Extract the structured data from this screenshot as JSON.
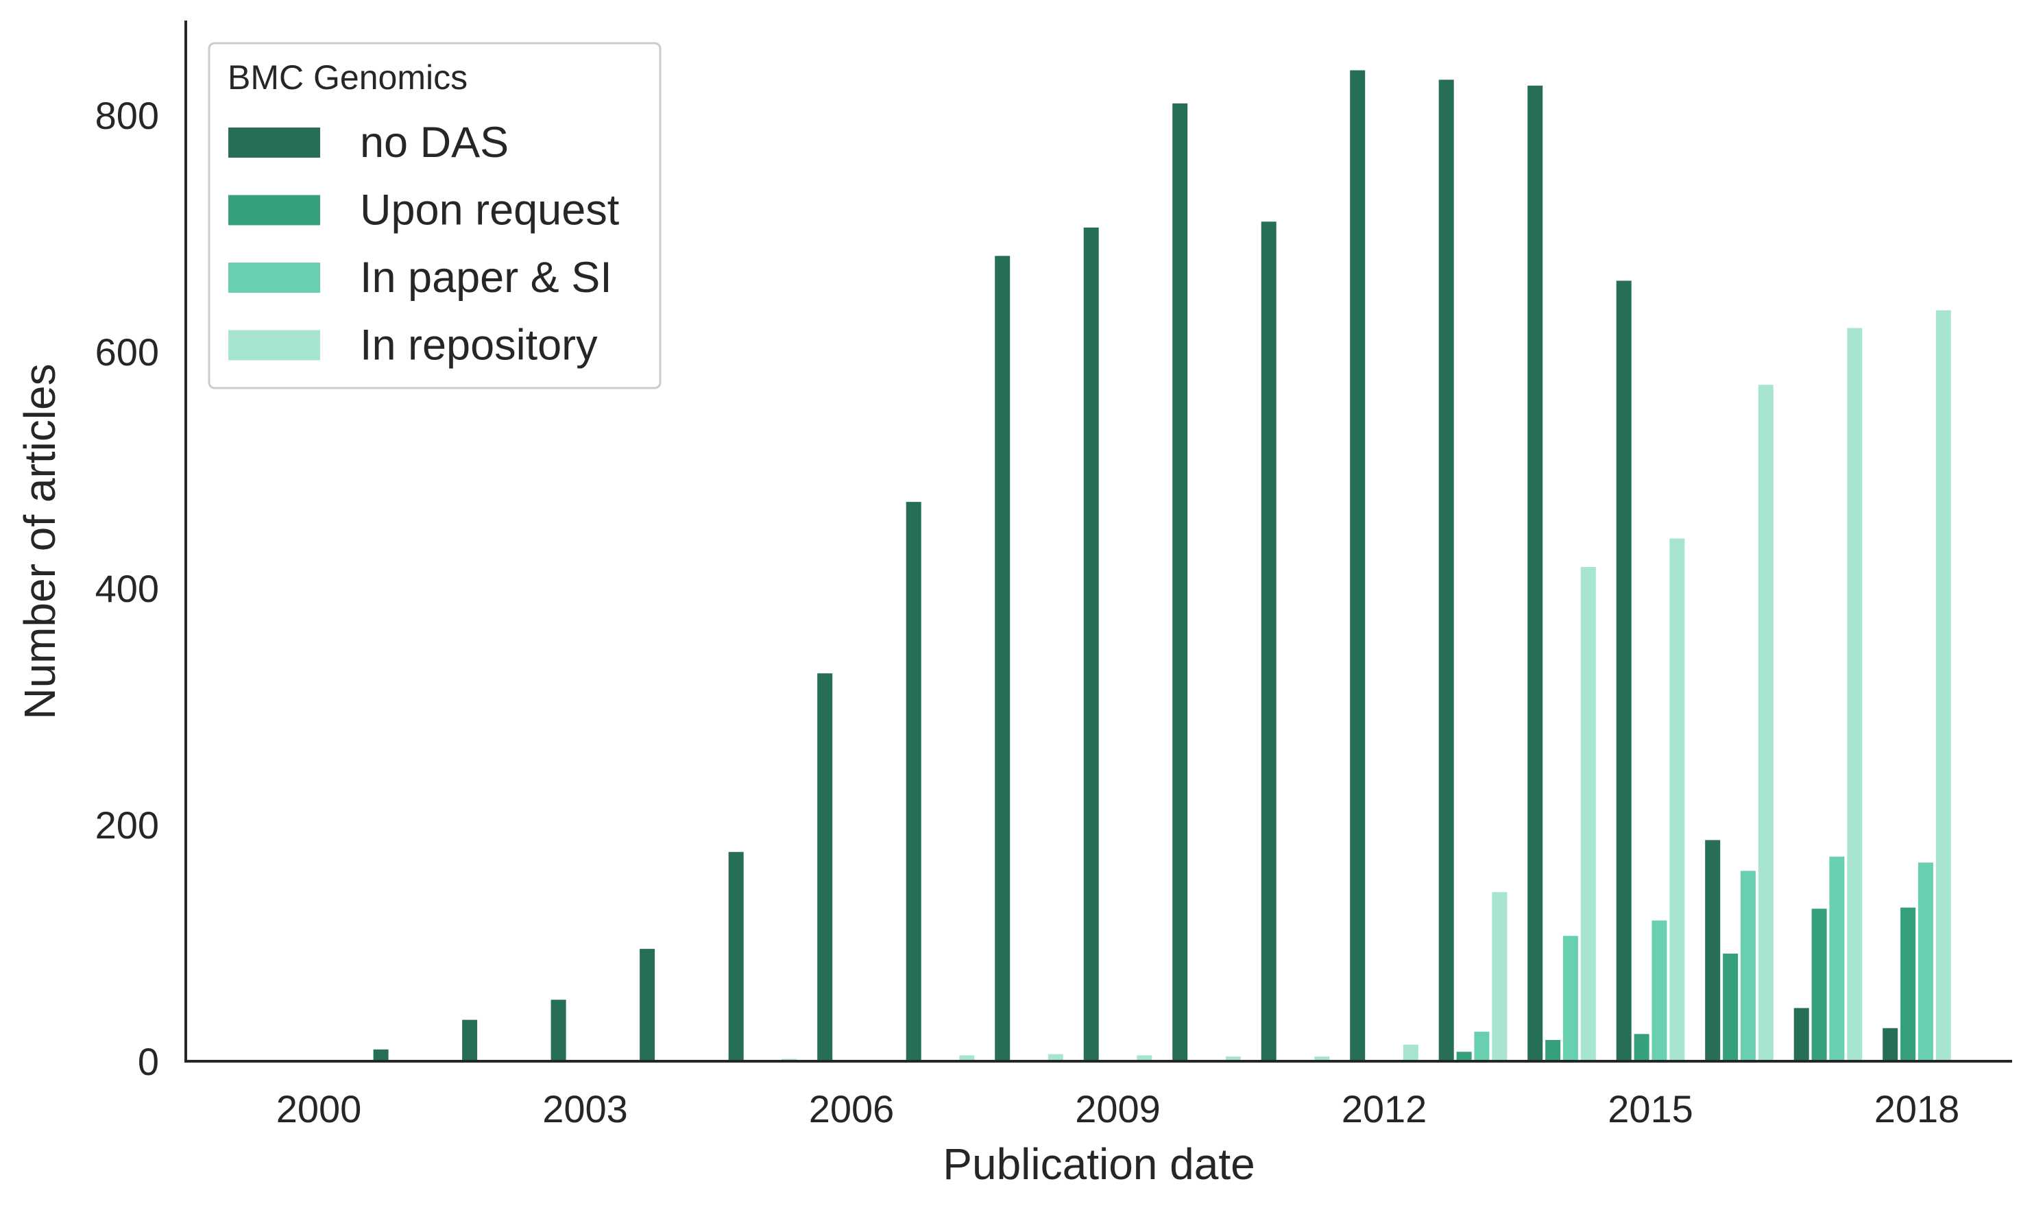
{
  "chart_data": {
    "type": "bar",
    "xlabel": "Publication date",
    "ylabel": "Number of articles",
    "ylim": [
      0,
      880
    ],
    "yticks": [
      0,
      200,
      400,
      600,
      800
    ],
    "xtick_labels": [
      "2000",
      "2003",
      "2006",
      "2009",
      "2012",
      "2015",
      "2018"
    ],
    "categories": [
      "2000",
      "2001",
      "2002",
      "2003",
      "2004",
      "2005",
      "2006",
      "2007",
      "2008",
      "2009",
      "2010",
      "2011",
      "2012",
      "2013",
      "2014",
      "2015",
      "2016",
      "2017",
      "2018"
    ],
    "legend_title": "BMC Genomics",
    "legend_position": "upper-left",
    "series": [
      {
        "name": "no DAS",
        "color": "#276e58",
        "values": [
          0,
          10,
          35,
          52,
          95,
          177,
          328,
          473,
          681,
          705,
          810,
          710,
          838,
          830,
          825,
          660,
          187,
          45,
          28
        ]
      },
      {
        "name": "Upon request",
        "color": "#36a07d",
        "values": [
          0,
          0,
          0,
          0,
          0,
          0,
          0,
          0,
          0,
          0,
          0,
          0,
          0,
          8,
          18,
          23,
          91,
          129,
          130
        ]
      },
      {
        "name": "In paper & SI",
        "color": "#68d0b0",
        "values": [
          0,
          0,
          0,
          0,
          0,
          0,
          0,
          0,
          0,
          0,
          0,
          0,
          0,
          25,
          106,
          119,
          161,
          173,
          168
        ]
      },
      {
        "name": "In repository",
        "color": "#a8e4d2",
        "values": [
          0,
          0,
          0,
          0,
          0,
          2,
          0,
          5,
          6,
          5,
          4,
          4,
          14,
          143,
          418,
          442,
          572,
          620,
          635
        ]
      }
    ]
  }
}
